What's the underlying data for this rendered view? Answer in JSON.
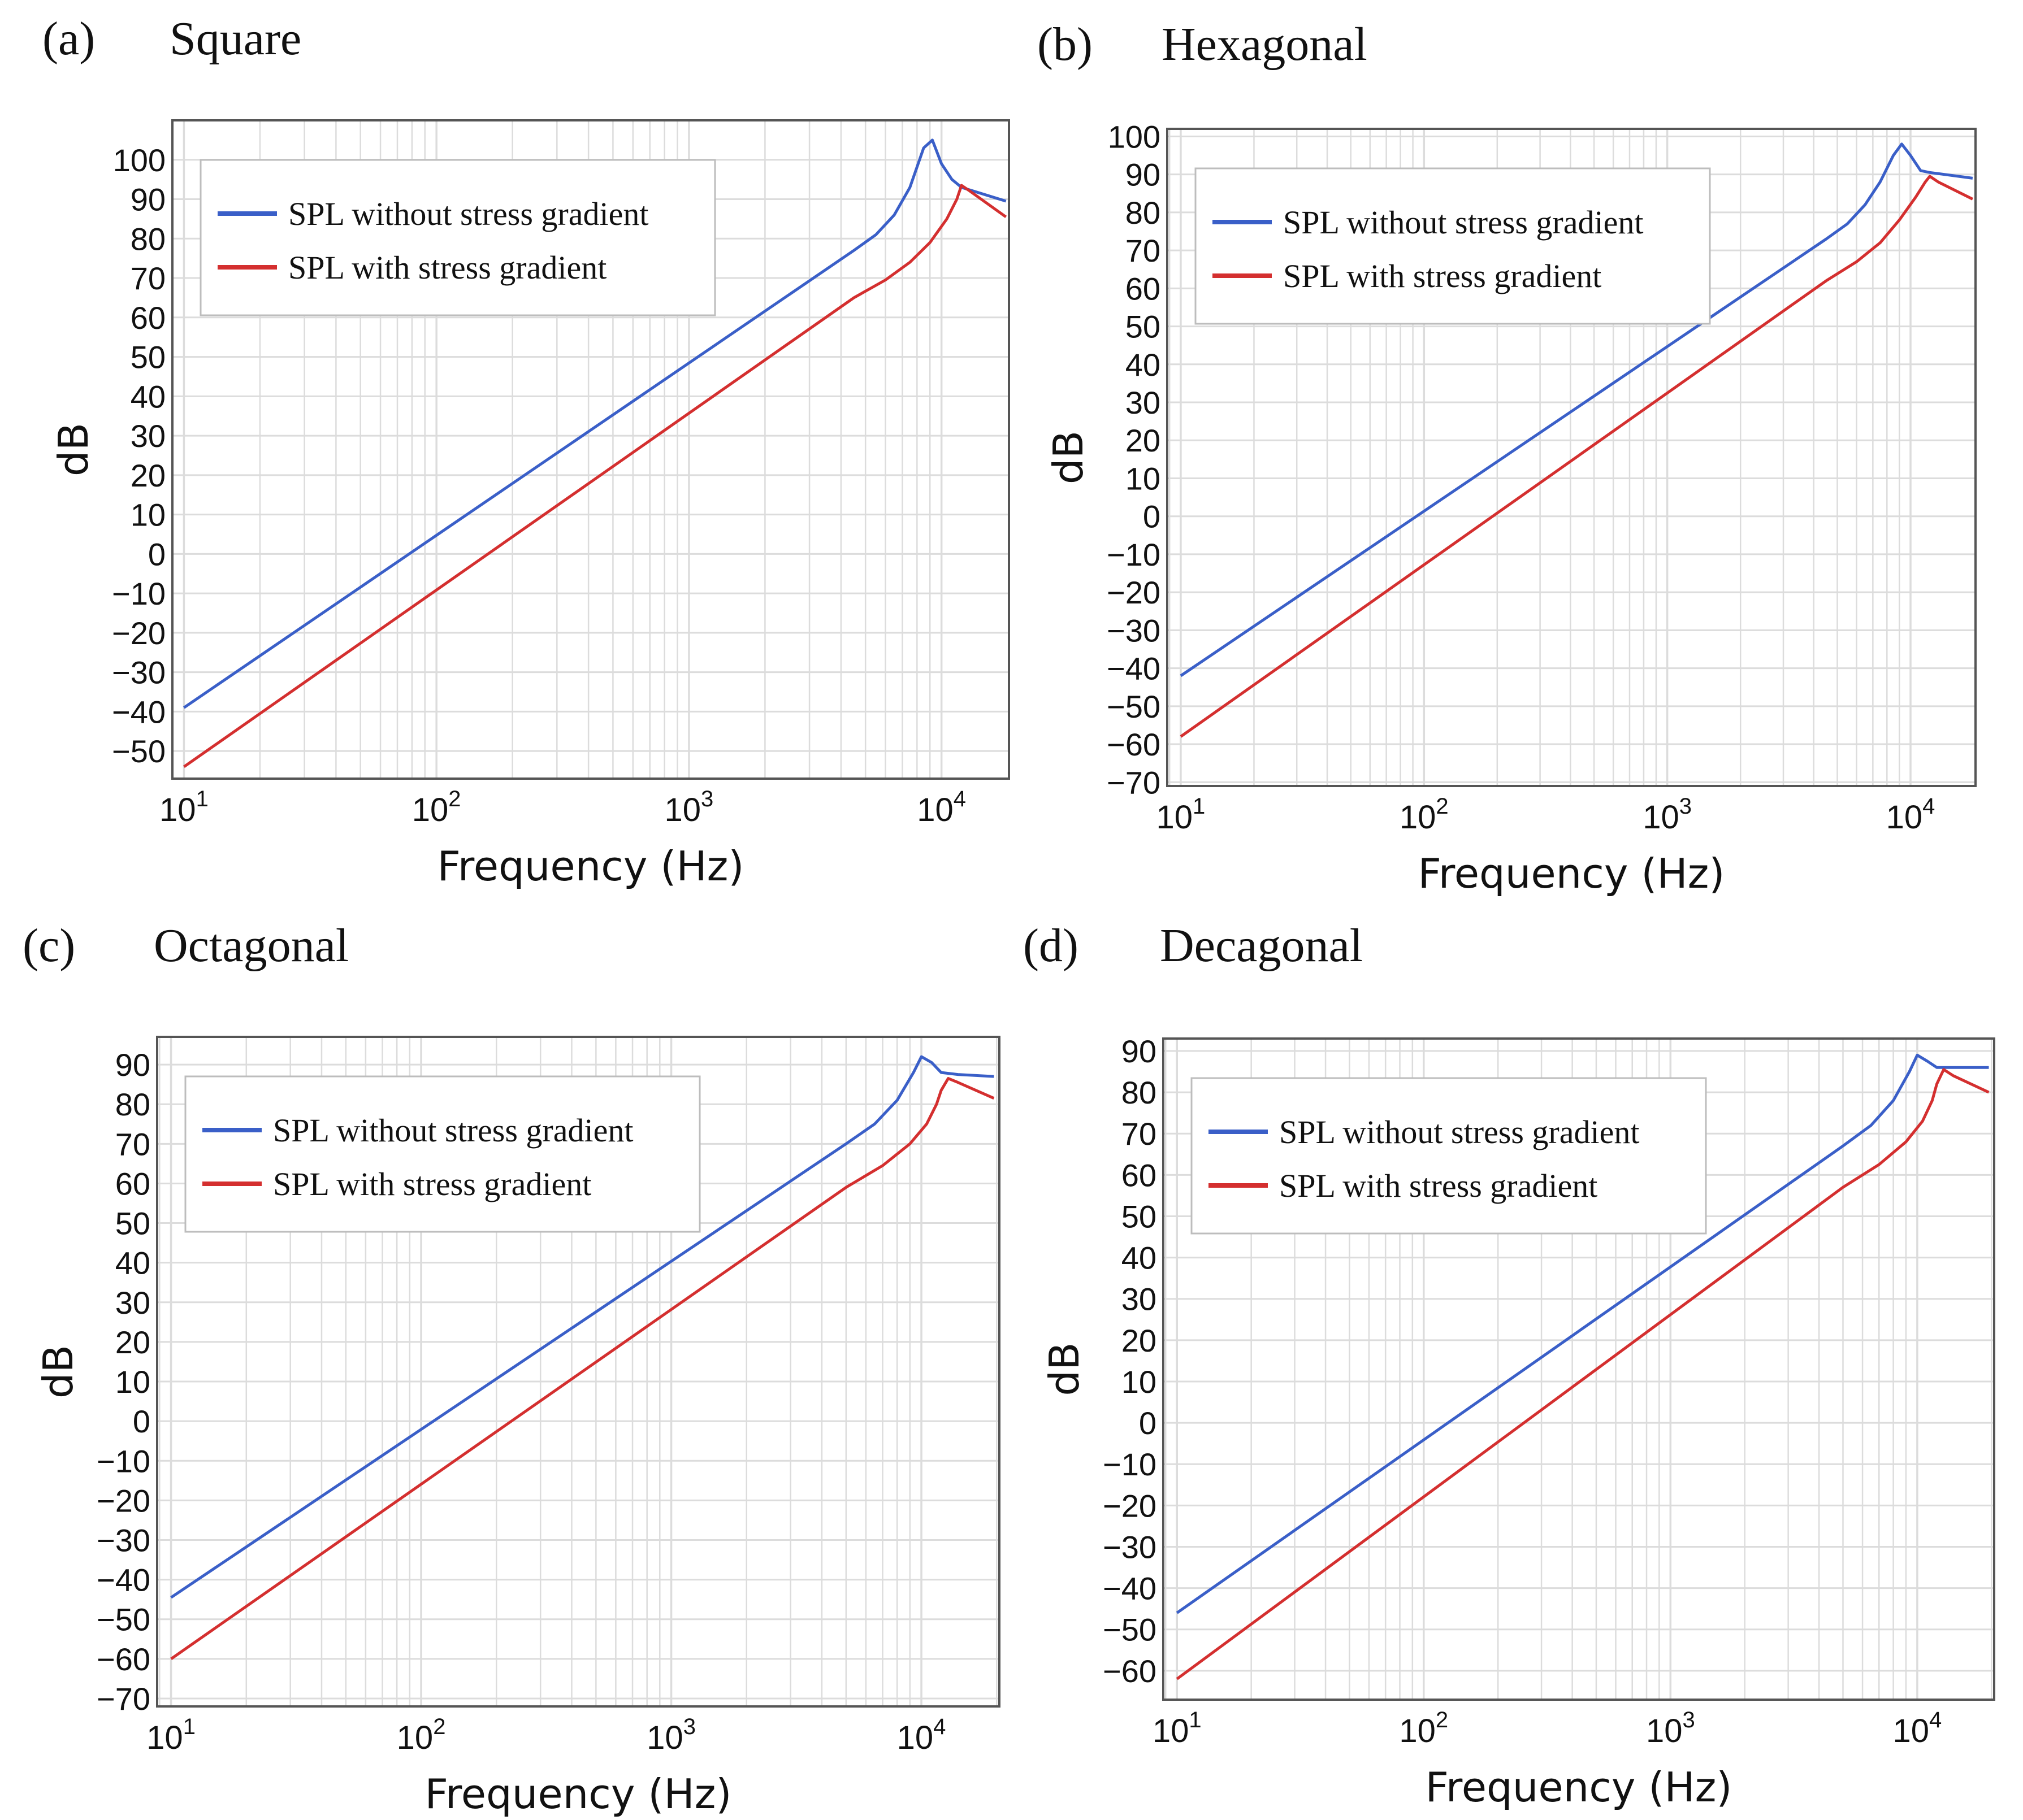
{
  "colors": {
    "series_without": "#3a5fc8",
    "series_with": "#d42f2f",
    "grid": "#dcdcdc",
    "frame": "#555555"
  },
  "chart_data": [
    {
      "type": "line",
      "label": "(a)",
      "title": "Square",
      "xlabel": "Frequency (Hz)",
      "ylabel": "dB",
      "xscale": "log",
      "xlim": [
        9,
        18500
      ],
      "ylim": [
        -57,
        110
      ],
      "yticks": [
        -50,
        -40,
        -30,
        -20,
        -10,
        0,
        10,
        20,
        30,
        40,
        50,
        60,
        70,
        80,
        90,
        100
      ],
      "xticks": [
        {
          "base": "10",
          "exp": "1",
          "value": 10
        },
        {
          "base": "10",
          "exp": "2",
          "value": 100
        },
        {
          "base": "10",
          "exp": "3",
          "value": 1000
        },
        {
          "base": "10",
          "exp": "4",
          "value": 10000
        }
      ],
      "grid": true,
      "legend_position": "top-left",
      "series": [
        {
          "name": "SPL without stress gradient",
          "color": "#3a5fc8",
          "x": [
            10,
            4500,
            5500,
            6500,
            7500,
            8500,
            9200,
            10000,
            11000,
            12000,
            18000
          ],
          "y": [
            -39,
            77,
            81,
            86,
            93,
            103,
            105,
            99,
            95,
            93,
            89.5
          ]
        },
        {
          "name": "SPL with stress gradient",
          "color": "#d42f2f",
          "x": [
            10,
            4500,
            6000,
            7500,
            9000,
            10500,
            11500,
            12000,
            13000,
            18000
          ],
          "y": [
            -54,
            65,
            69.5,
            74,
            79,
            85,
            90,
            93.5,
            92,
            85.5
          ]
        }
      ]
    },
    {
      "type": "line",
      "label": "(b)",
      "title": "Hexagonal",
      "xlabel": "Frequency (Hz)",
      "ylabel": "dB",
      "xscale": "log",
      "xlim": [
        8.8,
        18500
      ],
      "ylim": [
        -71,
        102
      ],
      "yticks": [
        -70,
        -60,
        -50,
        -40,
        -30,
        -20,
        -10,
        0,
        10,
        20,
        30,
        40,
        50,
        60,
        70,
        80,
        90,
        100
      ],
      "xticks": [
        {
          "base": "10",
          "exp": "1",
          "value": 10
        },
        {
          "base": "10",
          "exp": "2",
          "value": 100
        },
        {
          "base": "10",
          "exp": "3",
          "value": 1000
        },
        {
          "base": "10",
          "exp": "4",
          "value": 10000
        }
      ],
      "grid": true,
      "legend_position": "top-left",
      "series": [
        {
          "name": "SPL without stress gradient",
          "color": "#3a5fc8",
          "x": [
            10,
            4500,
            5500,
            6500,
            7500,
            8500,
            9200,
            10000,
            11000,
            12000,
            18000
          ],
          "y": [
            -42,
            73,
            77,
            82,
            88,
            95,
            98,
            95,
            91,
            90.5,
            89
          ]
        },
        {
          "name": "SPL with stress gradient",
          "color": "#d42f2f",
          "x": [
            10,
            4500,
            6000,
            7500,
            9000,
            10500,
            11500,
            12000,
            13000,
            18000
          ],
          "y": [
            -58,
            62,
            67,
            72,
            78,
            84,
            88,
            89.5,
            88,
            83.5
          ]
        }
      ]
    },
    {
      "type": "line",
      "label": "(c)",
      "title": "Octagonal",
      "xlabel": "Frequency (Hz)",
      "ylabel": "dB",
      "xscale": "log",
      "xlim": [
        8.8,
        20500
      ],
      "ylim": [
        -72,
        97
      ],
      "yticks": [
        -70,
        -60,
        -50,
        -40,
        -30,
        -20,
        -10,
        0,
        10,
        20,
        30,
        40,
        50,
        60,
        70,
        80,
        90
      ],
      "xticks": [
        {
          "base": "10",
          "exp": "1",
          "value": 10
        },
        {
          "base": "10",
          "exp": "2",
          "value": 100
        },
        {
          "base": "10",
          "exp": "3",
          "value": 1000
        },
        {
          "base": "10",
          "exp": "4",
          "value": 10000
        }
      ],
      "grid": true,
      "legend_position": "top-left",
      "series": [
        {
          "name": "SPL without stress gradient",
          "color": "#3a5fc8",
          "x": [
            10,
            5000,
            6500,
            8000,
            9300,
            10000,
            11000,
            12000,
            14000,
            19500
          ],
          "y": [
            -44.5,
            70,
            75,
            81,
            88,
            92,
            90.5,
            88,
            87.5,
            87
          ]
        },
        {
          "name": "SPL with stress gradient",
          "color": "#d42f2f",
          "x": [
            10,
            5000,
            7000,
            9000,
            10500,
            11500,
            12000,
            12800,
            14000,
            19500
          ],
          "y": [
            -60,
            59,
            64.5,
            70,
            75,
            80,
            83.5,
            86.5,
            85.5,
            81.5
          ]
        }
      ]
    },
    {
      "type": "line",
      "label": "(d)",
      "title": "Decagonal",
      "xlabel": "Frequency (Hz)",
      "ylabel": "dB",
      "xscale": "log",
      "xlim": [
        8.8,
        20500
      ],
      "ylim": [
        -67,
        93
      ],
      "yticks": [
        -60,
        -50,
        -40,
        -30,
        -20,
        -10,
        0,
        10,
        20,
        30,
        40,
        50,
        60,
        70,
        80,
        90
      ],
      "xticks": [
        {
          "base": "10",
          "exp": "1",
          "value": 10
        },
        {
          "base": "10",
          "exp": "2",
          "value": 100
        },
        {
          "base": "10",
          "exp": "3",
          "value": 1000
        },
        {
          "base": "10",
          "exp": "4",
          "value": 10000
        }
      ],
      "grid": true,
      "legend_position": "top-left",
      "series": [
        {
          "name": "SPL without stress gradient",
          "color": "#3a5fc8",
          "x": [
            10,
            5000,
            6500,
            8000,
            9300,
            10000,
            11000,
            12000,
            14000,
            19500
          ],
          "y": [
            -46,
            67,
            72,
            78,
            85,
            89,
            87.5,
            86,
            86,
            86
          ]
        },
        {
          "name": "SPL with stress gradient",
          "color": "#d42f2f",
          "x": [
            10,
            5000,
            7000,
            9000,
            10500,
            11500,
            12000,
            12800,
            14000,
            19500
          ],
          "y": [
            -62,
            57,
            62.5,
            68,
            73,
            78,
            82,
            85.5,
            84,
            80
          ]
        }
      ]
    }
  ]
}
